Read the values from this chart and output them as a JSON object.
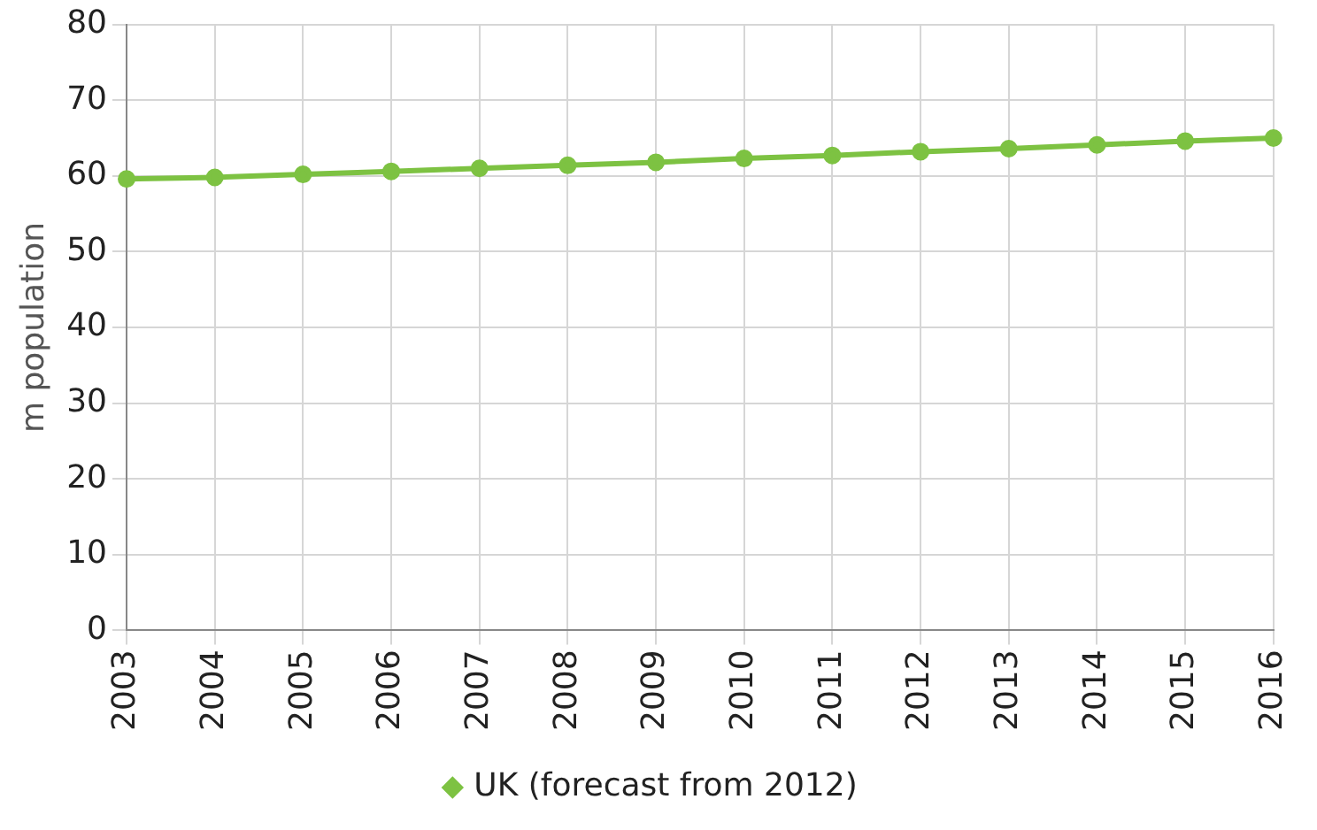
{
  "chart_data": {
    "type": "line",
    "ylabel": "m population",
    "categories": [
      "2003",
      "2004",
      "2005",
      "2006",
      "2007",
      "2008",
      "2009",
      "2010",
      "2011",
      "2012",
      "2013",
      "2014",
      "2015",
      "2016"
    ],
    "series": [
      {
        "name": "UK (forecast from 2012)",
        "color": "#7dc242",
        "values": [
          59.6,
          59.8,
          60.2,
          60.6,
          61.0,
          61.4,
          61.8,
          62.3,
          62.7,
          63.2,
          63.6,
          64.1,
          64.6,
          65.0
        ]
      }
    ],
    "ylim": [
      0,
      80
    ],
    "yticks": [
      0,
      10,
      20,
      30,
      40,
      50,
      60,
      70,
      80
    ],
    "grid": true,
    "legend": "bottom",
    "marker": "circle",
    "line_style": "solid"
  }
}
